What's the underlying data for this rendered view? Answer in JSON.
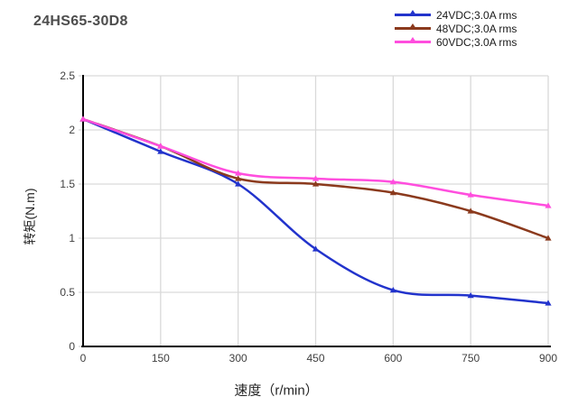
{
  "title": "24HS65-30D8",
  "colors": {
    "background": "#ffffff",
    "grid": "#d9d9d9",
    "axis": "#000000",
    "tick_text": "#404040",
    "title_text": "#4d4d4d",
    "legend_text": "#1a1a1a",
    "series_blue": "#2233cc",
    "series_brown": "#8b3a1d",
    "series_magenta": "#ff4ede"
  },
  "chart_data": {
    "type": "line",
    "title": "24HS65-30D8",
    "xlabel": "速度（r/min）",
    "ylabel": "转矩(N.m)",
    "x": [
      0,
      150,
      300,
      450,
      600,
      750,
      900
    ],
    "x_ticks": [
      "0",
      "150",
      "300",
      "450",
      "600",
      "750",
      "900"
    ],
    "y_ticks": [
      "0",
      "0.5",
      "1",
      "1.5",
      "2",
      "2.5"
    ],
    "xlim": [
      0,
      900
    ],
    "ylim": [
      0,
      2.5
    ],
    "grid": true,
    "legend_position": "top-right",
    "marker": "triangle",
    "series": [
      {
        "name": "24VDC;3.0A rms",
        "color": "#2233cc",
        "values": [
          2.1,
          1.8,
          1.5,
          0.9,
          0.52,
          0.47,
          0.4
        ]
      },
      {
        "name": "48VDC;3.0A rms",
        "color": "#8b3a1d",
        "values": [
          2.1,
          1.85,
          1.55,
          1.5,
          1.42,
          1.25,
          1.0
        ]
      },
      {
        "name": "60VDC;3.0A rms",
        "color": "#ff4ede",
        "values": [
          2.1,
          1.85,
          1.6,
          1.55,
          1.52,
          1.4,
          1.3
        ]
      }
    ]
  }
}
